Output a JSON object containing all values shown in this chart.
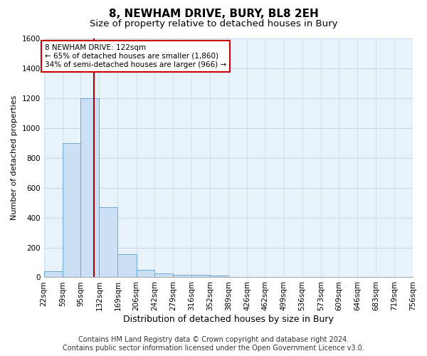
{
  "title": "8, NEWHAM DRIVE, BURY, BL8 2EH",
  "subtitle": "Size of property relative to detached houses in Bury",
  "xlabel": "Distribution of detached houses by size in Bury",
  "ylabel": "Number of detached properties",
  "footer_line1": "Contains HM Land Registry data © Crown copyright and database right 2024.",
  "footer_line2": "Contains public sector information licensed under the Open Government Licence v3.0.",
  "bar_color": "#cce0f5",
  "bar_edge_color": "#5a9fd4",
  "grid_color": "#c8d8e8",
  "background_color": "#e8f2fb",
  "annotation_box_color": "#cc0000",
  "property_line_color": "#aa0000",
  "bins": [
    22,
    59,
    95,
    132,
    169,
    206,
    242,
    279,
    316,
    352,
    389,
    426,
    462,
    499,
    536,
    573,
    609,
    646,
    683,
    719,
    756
  ],
  "counts": [
    40,
    900,
    1200,
    470,
    155,
    50,
    25,
    15,
    15,
    10,
    0,
    0,
    0,
    0,
    0,
    0,
    0,
    0,
    0,
    0
  ],
  "property_size": 122,
  "ylim": [
    0,
    1600
  ],
  "yticks": [
    0,
    200,
    400,
    600,
    800,
    1000,
    1200,
    1400,
    1600
  ],
  "annotation_text": "8 NEWHAM DRIVE: 122sqm\n← 65% of detached houses are smaller (1,860)\n34% of semi-detached houses are larger (966) →",
  "title_fontsize": 11,
  "subtitle_fontsize": 9.5,
  "ylabel_fontsize": 8,
  "xlabel_fontsize": 9,
  "tick_fontsize": 7.5,
  "annotation_fontsize": 7.5,
  "footer_fontsize": 7
}
